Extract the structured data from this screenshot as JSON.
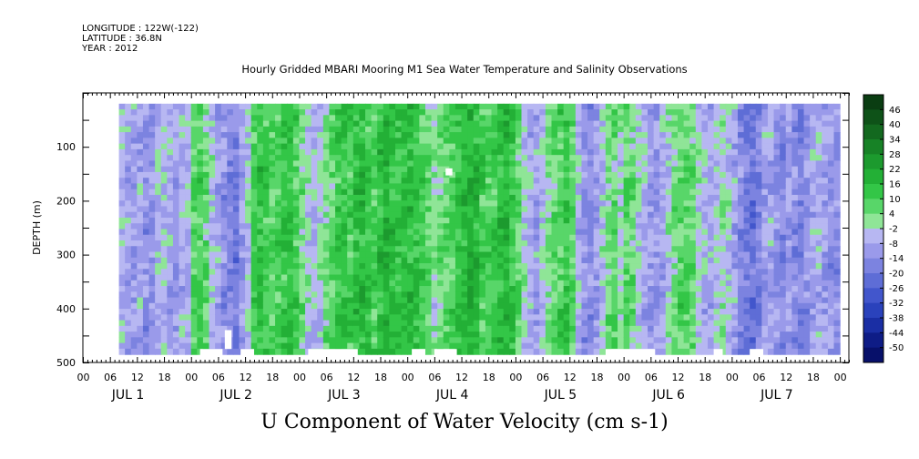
{
  "meta": {
    "longitude": "LONGITUDE : 122W(-122)",
    "latitude": "LATITUDE : 36.8N",
    "year": "YEAR : 2012"
  },
  "chart_data": {
    "type": "heatmap",
    "title": "Hourly Gridded MBARI Mooring M1 Sea Water Temperature and Salinity Observations",
    "bottom_title": "U Component of Water Velocity (cm s-1)",
    "ylabel": "DEPTH (m)",
    "xlabel": "",
    "ylim": [
      500,
      0
    ],
    "y_ticks": [
      100,
      200,
      300,
      400,
      500
    ],
    "x_hour_ticks": [
      "00",
      "06",
      "12",
      "18",
      "00",
      "06",
      "12",
      "18",
      "00",
      "06",
      "12",
      "18",
      "00",
      "06",
      "12",
      "18",
      "00",
      "06",
      "12",
      "18",
      "00",
      "06",
      "12",
      "18",
      "00",
      "06",
      "12",
      "18",
      "00"
    ],
    "x_day_labels": [
      "JUL 1",
      "JUL 2",
      "JUL 3",
      "JUL 4",
      "JUL 5",
      "JUL 6",
      "JUL 7"
    ],
    "x_range_hours": [
      0,
      170
    ],
    "data_extent": {
      "start_hour": 8,
      "end_hour": 168,
      "min_depth": 20,
      "max_depth": 485
    },
    "colorbar": {
      "levels": [
        46,
        40,
        34,
        28,
        22,
        16,
        10,
        4,
        -2,
        -8,
        -14,
        -20,
        -26,
        -32,
        -38,
        -44,
        -50
      ],
      "colors": [
        "#0a3d12",
        "#0e5218",
        "#13691f",
        "#178226",
        "#1c9a2e",
        "#23b036",
        "#33c647",
        "#58d669",
        "#8fe597",
        "#b7b7f2",
        "#9a9aea",
        "#7c83e0",
        "#5e6dd6",
        "#4256cc",
        "#2a42bc",
        "#1a2ea4",
        "#0e1c86",
        "#07106a"
      ]
    },
    "column_means": [
      -6,
      -9,
      -10,
      -8,
      -12,
      -11,
      -6,
      -4,
      -8,
      -10,
      -7,
      -5,
      6,
      8,
      5,
      -4,
      -9,
      -12,
      -14,
      -18,
      -10,
      -3,
      9,
      13,
      10,
      6,
      8,
      11,
      12,
      8,
      2,
      -3,
      -4,
      -2,
      3,
      6,
      10,
      12,
      9,
      14,
      16,
      12,
      8,
      14,
      17,
      15,
      12,
      13,
      15,
      13,
      10,
      6,
      0,
      2,
      4,
      8,
      12,
      16,
      18,
      16,
      10,
      8,
      10,
      14,
      16,
      12,
      5,
      -2,
      -6,
      -8,
      -4,
      2,
      5,
      8,
      10,
      6,
      -6,
      -12,
      -14,
      -10,
      -4,
      2,
      4,
      0,
      6,
      4,
      -2,
      -6,
      -10,
      -12,
      -8,
      -2,
      4,
      6,
      6,
      4,
      -2,
      -6,
      -8,
      -4,
      0,
      -4,
      -8,
      -14,
      -18,
      -20,
      -16,
      -10,
      -8,
      -12,
      -14,
      -10,
      -14,
      -16,
      -12,
      -8,
      -6,
      -10,
      -12,
      -14
    ],
    "grid": {
      "on": false
    },
    "legend": "right"
  }
}
